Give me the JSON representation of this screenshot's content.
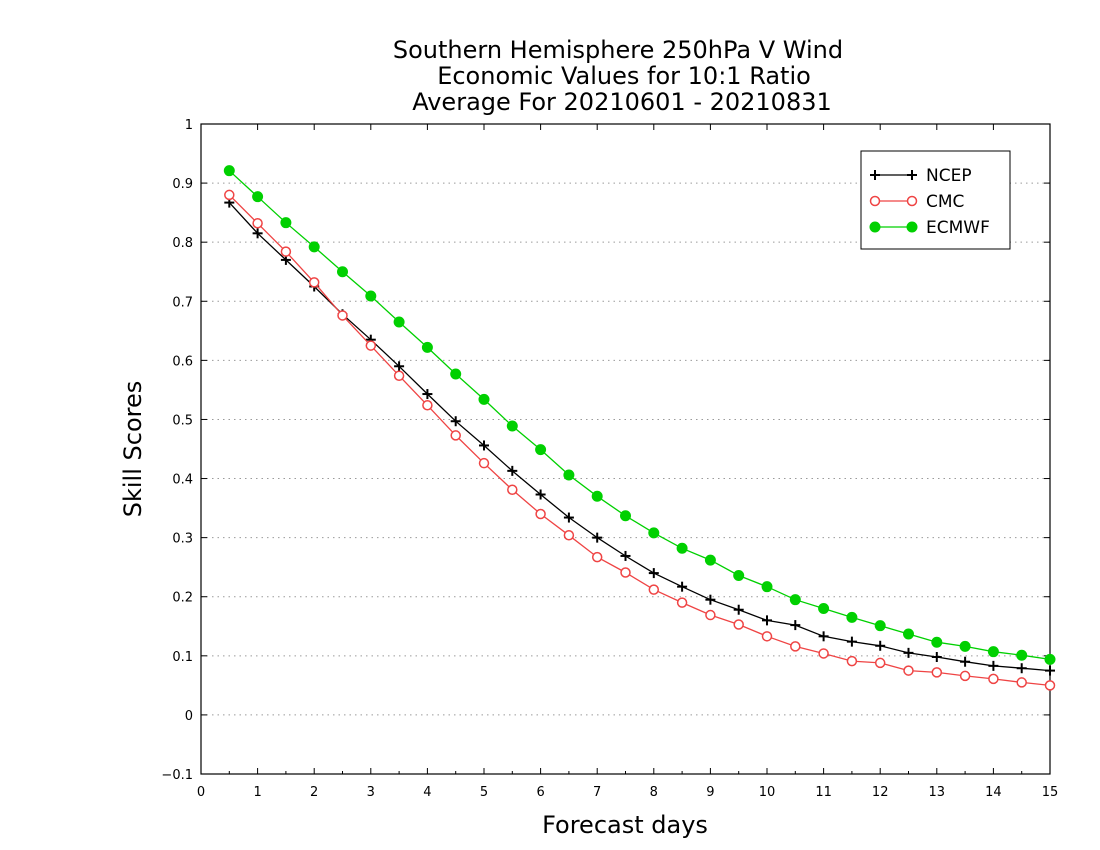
{
  "chart_data": {
    "type": "line",
    "title": [
      "Southern Hemisphere 250hPa V Wind",
      "Economic Values for 10:1 Ratio",
      "Average For 20210601 - 20210831"
    ],
    "xlabel": "Forecast days",
    "ylabel": "Skill Scores",
    "xlim": [
      0,
      15
    ],
    "ylim": [
      -0.1,
      1
    ],
    "xticks": [
      "0",
      "1",
      "2",
      "3",
      "4",
      "5",
      "6",
      "7",
      "8",
      "9",
      "10",
      "11",
      "12",
      "13",
      "14",
      "15"
    ],
    "yticks": [
      "−0.1",
      "0",
      "0.1",
      "0.2",
      "0.3",
      "0.4",
      "0.5",
      "0.6",
      "0.7",
      "0.8",
      "0.9",
      "1"
    ],
    "grid": "dotted horizontal",
    "legend_position": "top-right",
    "x": [
      0.5,
      1,
      1.5,
      2,
      2.5,
      3,
      3.5,
      4,
      4.5,
      5,
      5.5,
      6,
      6.5,
      7,
      7.5,
      8,
      8.5,
      9,
      9.5,
      10,
      10.5,
      11,
      11.5,
      12,
      12.5,
      13,
      13.5,
      14,
      14.5,
      15
    ],
    "series": [
      {
        "name": "NCEP",
        "color": "#000000",
        "marker": "plus",
        "values": [
          0.867,
          0.815,
          0.77,
          0.725,
          0.678,
          0.635,
          0.59,
          0.543,
          0.497,
          0.456,
          0.413,
          0.373,
          0.334,
          0.3,
          0.269,
          0.24,
          0.217,
          0.195,
          0.178,
          0.16,
          0.152,
          0.133,
          0.124,
          0.117,
          0.105,
          0.098,
          0.09,
          0.083,
          0.079,
          0.075
        ]
      },
      {
        "name": "CMC",
        "color": "#ef4444",
        "marker": "open-circle",
        "values": [
          0.88,
          0.832,
          0.784,
          0.732,
          0.676,
          0.625,
          0.574,
          0.524,
          0.473,
          0.426,
          0.381,
          0.34,
          0.304,
          0.267,
          0.241,
          0.212,
          0.19,
          0.169,
          0.153,
          0.133,
          0.116,
          0.104,
          0.091,
          0.088,
          0.075,
          0.072,
          0.066,
          0.061,
          0.055,
          0.05
        ]
      },
      {
        "name": "ECMWF",
        "color": "#00d000",
        "marker": "filled-circle",
        "values": [
          0.921,
          0.877,
          0.833,
          0.792,
          0.75,
          0.709,
          0.665,
          0.622,
          0.577,
          0.534,
          0.489,
          0.449,
          0.406,
          0.37,
          0.337,
          0.308,
          0.282,
          0.262,
          0.236,
          0.217,
          0.195,
          0.18,
          0.165,
          0.151,
          0.137,
          0.123,
          0.116,
          0.107,
          0.101,
          0.094
        ]
      }
    ]
  }
}
